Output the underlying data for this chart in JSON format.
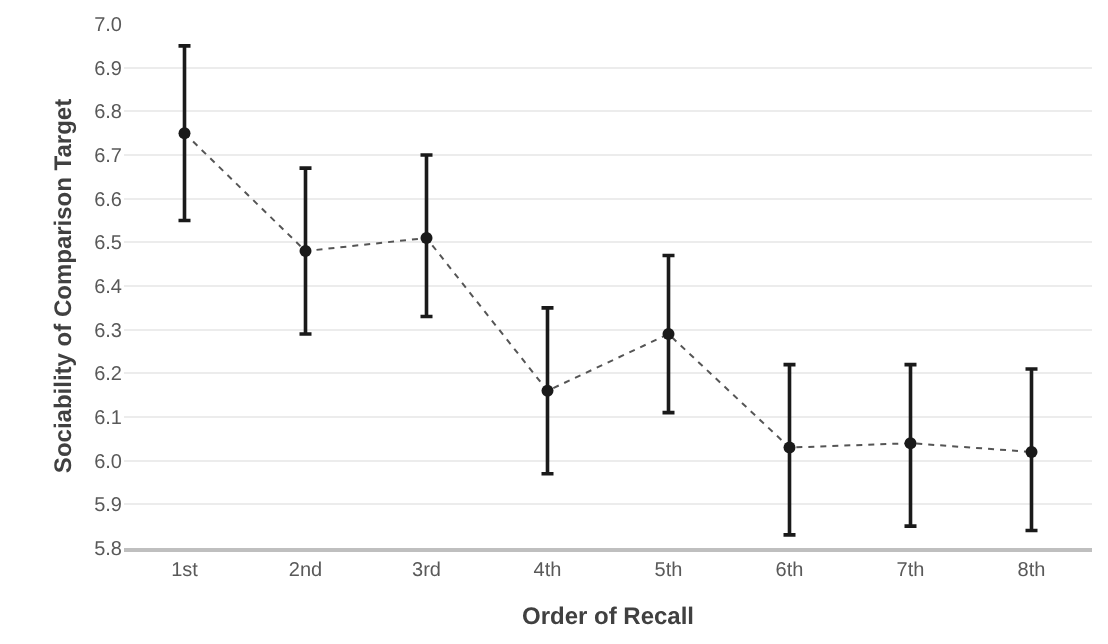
{
  "chart_data": {
    "type": "line",
    "xlabel": "Order of Recall",
    "ylabel": "Sociability of Comparison Target",
    "categories": [
      "1st",
      "2nd",
      "3rd",
      "4th",
      "5th",
      "6th",
      "7th",
      "8th"
    ],
    "series": [
      {
        "color": "#1a1a1a",
        "values": [
          6.75,
          6.48,
          6.51,
          6.16,
          6.29,
          6.03,
          6.04,
          6.02
        ],
        "errors": [
          [
            6.55,
            6.95
          ],
          [
            6.29,
            6.67
          ],
          [
            6.33,
            6.7
          ],
          [
            5.97,
            6.35
          ],
          [
            6.11,
            6.47
          ],
          [
            5.83,
            6.22
          ],
          [
            5.85,
            6.22
          ],
          [
            5.84,
            6.21
          ]
        ]
      }
    ],
    "ylim": [
      5.8,
      7.0
    ],
    "yticks": [
      5.8,
      5.9,
      {
        "value": 6,
        "label": "6.0"
      },
      6.1,
      6.2,
      6.3,
      6.4,
      6.5,
      6.6,
      6.7,
      6.8,
      6.9,
      {
        "value": 7,
        "label": "7.0"
      }
    ],
    "grid": "y",
    "marker": "circle",
    "line_style": "dotted"
  }
}
